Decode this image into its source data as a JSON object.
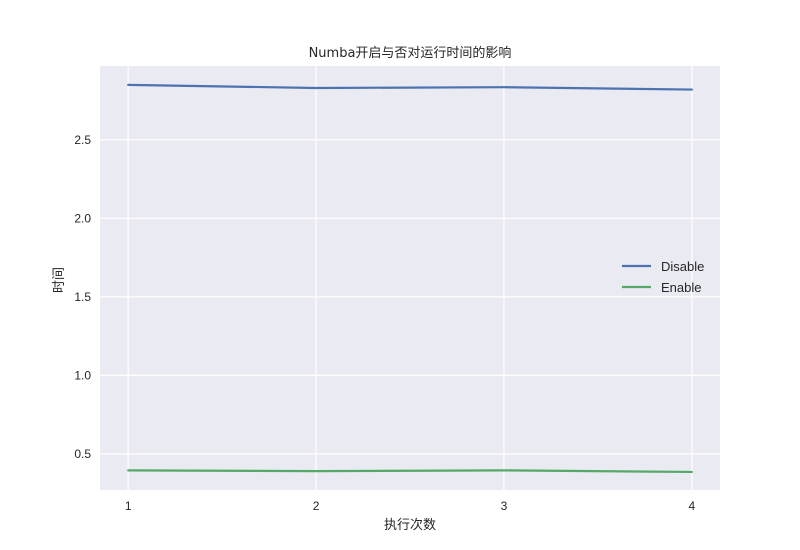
{
  "chart_data": {
    "type": "line",
    "title": "Numba开启与否对运行时间的影响",
    "xlabel": "执行次数",
    "ylabel": "时间",
    "x": [
      1,
      2,
      3,
      4
    ],
    "xticks": [
      "1",
      "2",
      "3",
      "4"
    ],
    "yticks": [
      "0.5",
      "1.0",
      "1.5",
      "2.0",
      "2.5"
    ],
    "xlim": [
      0.85,
      4.15
    ],
    "ylim": [
      0.27,
      2.97
    ],
    "grid": true,
    "legend_position": "right",
    "series": [
      {
        "name": "Disable",
        "color": "#4c72b0",
        "values": [
          2.85,
          2.83,
          2.835,
          2.82
        ]
      },
      {
        "name": "Enable",
        "color": "#55a868",
        "values": [
          0.395,
          0.39,
          0.395,
          0.385
        ]
      }
    ]
  }
}
